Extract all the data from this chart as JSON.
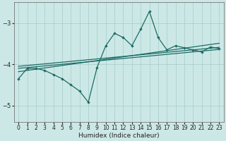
{
  "xlabel": "Humidex (Indice chaleur)",
  "bg_color": "#cce8e6",
  "grid_color": "#aacfcd",
  "line_color": "#1c6b65",
  "x_data": [
    0,
    1,
    2,
    3,
    4,
    5,
    6,
    7,
    8,
    9,
    10,
    11,
    12,
    13,
    14,
    15,
    16,
    17,
    18,
    19,
    20,
    21,
    22,
    23
  ],
  "y_main": [
    -4.35,
    -4.1,
    -4.1,
    -4.15,
    -4.25,
    -4.35,
    -4.5,
    -4.65,
    -4.92,
    -4.08,
    -3.55,
    -3.25,
    -3.35,
    -3.55,
    -3.15,
    -2.72,
    -3.35,
    -3.65,
    -3.55,
    -3.6,
    -3.65,
    -3.7,
    -3.58,
    -3.62
  ],
  "y_line1": [
    -4.18,
    -4.15,
    -4.12,
    -4.09,
    -4.06,
    -4.03,
    -4.0,
    -3.97,
    -3.94,
    -3.91,
    -3.88,
    -3.85,
    -3.82,
    -3.79,
    -3.76,
    -3.73,
    -3.7,
    -3.67,
    -3.64,
    -3.61,
    -3.58,
    -3.55,
    -3.52,
    -3.49
  ],
  "y_line2": [
    -4.1,
    -4.08,
    -4.06,
    -4.04,
    -4.02,
    -4.0,
    -3.98,
    -3.96,
    -3.94,
    -3.92,
    -3.9,
    -3.88,
    -3.86,
    -3.84,
    -3.82,
    -3.8,
    -3.78,
    -3.76,
    -3.74,
    -3.72,
    -3.7,
    -3.68,
    -3.66,
    -3.64
  ],
  "y_line3": [
    -4.05,
    -4.03,
    -4.01,
    -3.99,
    -3.97,
    -3.95,
    -3.93,
    -3.91,
    -3.89,
    -3.87,
    -3.85,
    -3.83,
    -3.81,
    -3.79,
    -3.77,
    -3.75,
    -3.73,
    -3.71,
    -3.69,
    -3.67,
    -3.65,
    -3.63,
    -3.61,
    -3.59
  ],
  "ylim": [
    -5.4,
    -2.5
  ],
  "xlim": [
    -0.5,
    23.5
  ],
  "yticks": [
    -5,
    -4,
    -3
  ],
  "xticks": [
    0,
    1,
    2,
    3,
    4,
    5,
    6,
    7,
    8,
    9,
    10,
    11,
    12,
    13,
    14,
    15,
    16,
    17,
    18,
    19,
    20,
    21,
    22,
    23
  ]
}
